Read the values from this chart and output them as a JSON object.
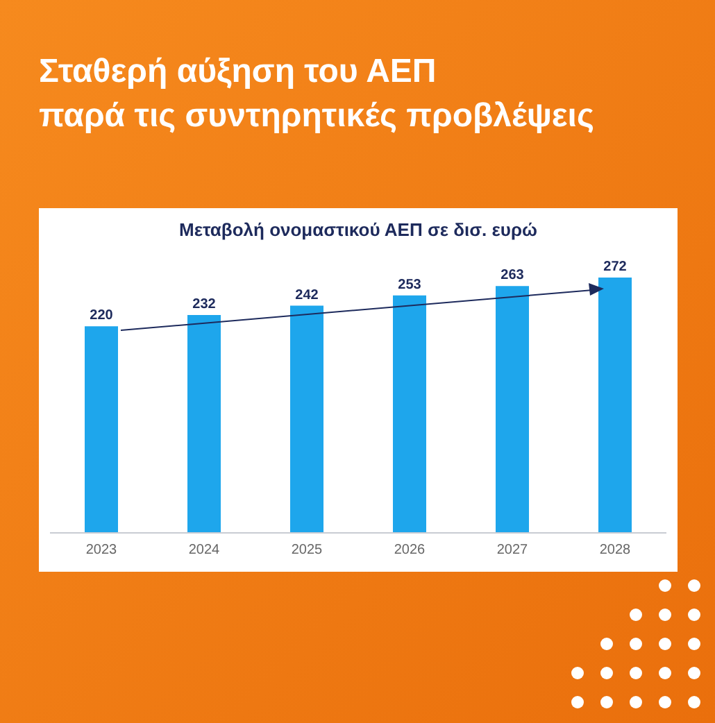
{
  "chart_data": {
    "type": "bar",
    "title": "Σταθερή αύξηση του ΑΕΠ\nπαρά τις συντηρητικές προβλέψεις",
    "subtitle": "Μεταβολή ονομαστικού ΑΕΠ σε δισ. ευρώ",
    "categories": [
      "2023",
      "2024",
      "2025",
      "2026",
      "2027",
      "2028"
    ],
    "values": [
      220,
      232,
      242,
      253,
      263,
      272
    ],
    "color": "#1ea6ec",
    "tick_labels": "x",
    "data_labels": true,
    "grid": false,
    "legend": false
  }
}
